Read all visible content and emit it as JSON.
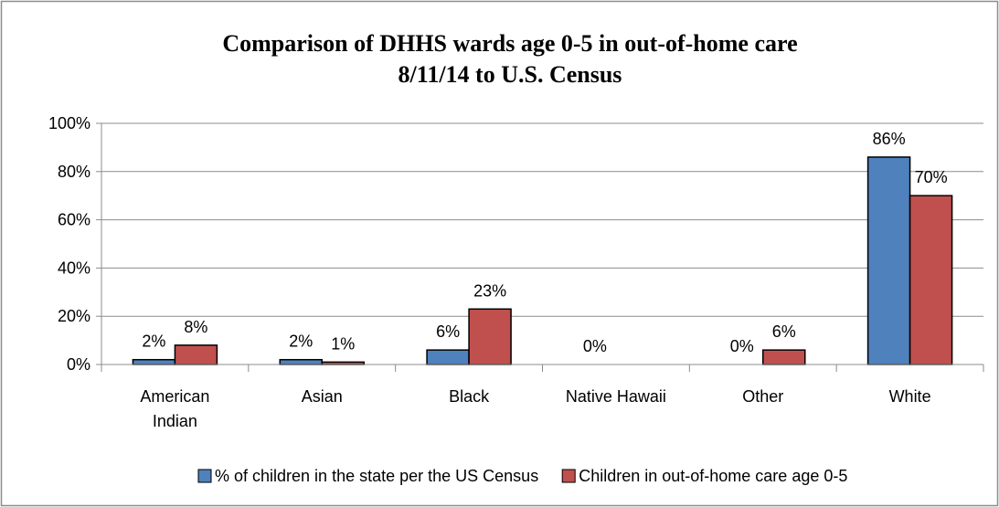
{
  "chart_data": {
    "type": "bar",
    "title": "Comparison of DHHS wards age 0-5 in out-of-home care",
    "subtitle": "8/11/14 to U.S. Census",
    "categories": [
      [
        "American",
        "Indian"
      ],
      [
        "Asian"
      ],
      [
        "Black"
      ],
      [
        "Native Hawaii"
      ],
      [
        "Other"
      ],
      [
        "White"
      ]
    ],
    "series": [
      {
        "name": "% of children in the state per the US Census",
        "color": "#4f81bd",
        "values": [
          2,
          2,
          6,
          0,
          0,
          86
        ],
        "labels": [
          "2%",
          "2%",
          "6%",
          "0%",
          "0%",
          "86%"
        ]
      },
      {
        "name": "Children in out-of-home care age 0-5",
        "color": "#c0504d",
        "values": [
          8,
          1,
          23,
          null,
          6,
          70
        ],
        "labels": [
          "8%",
          "1%",
          "23%",
          null,
          "6%",
          "70%"
        ]
      }
    ],
    "ylim": [
      0,
      100
    ],
    "yticks": [
      "0%",
      "20%",
      "40%",
      "60%",
      "80%",
      "100%"
    ],
    "grid": true,
    "legend_position": "bottom"
  }
}
